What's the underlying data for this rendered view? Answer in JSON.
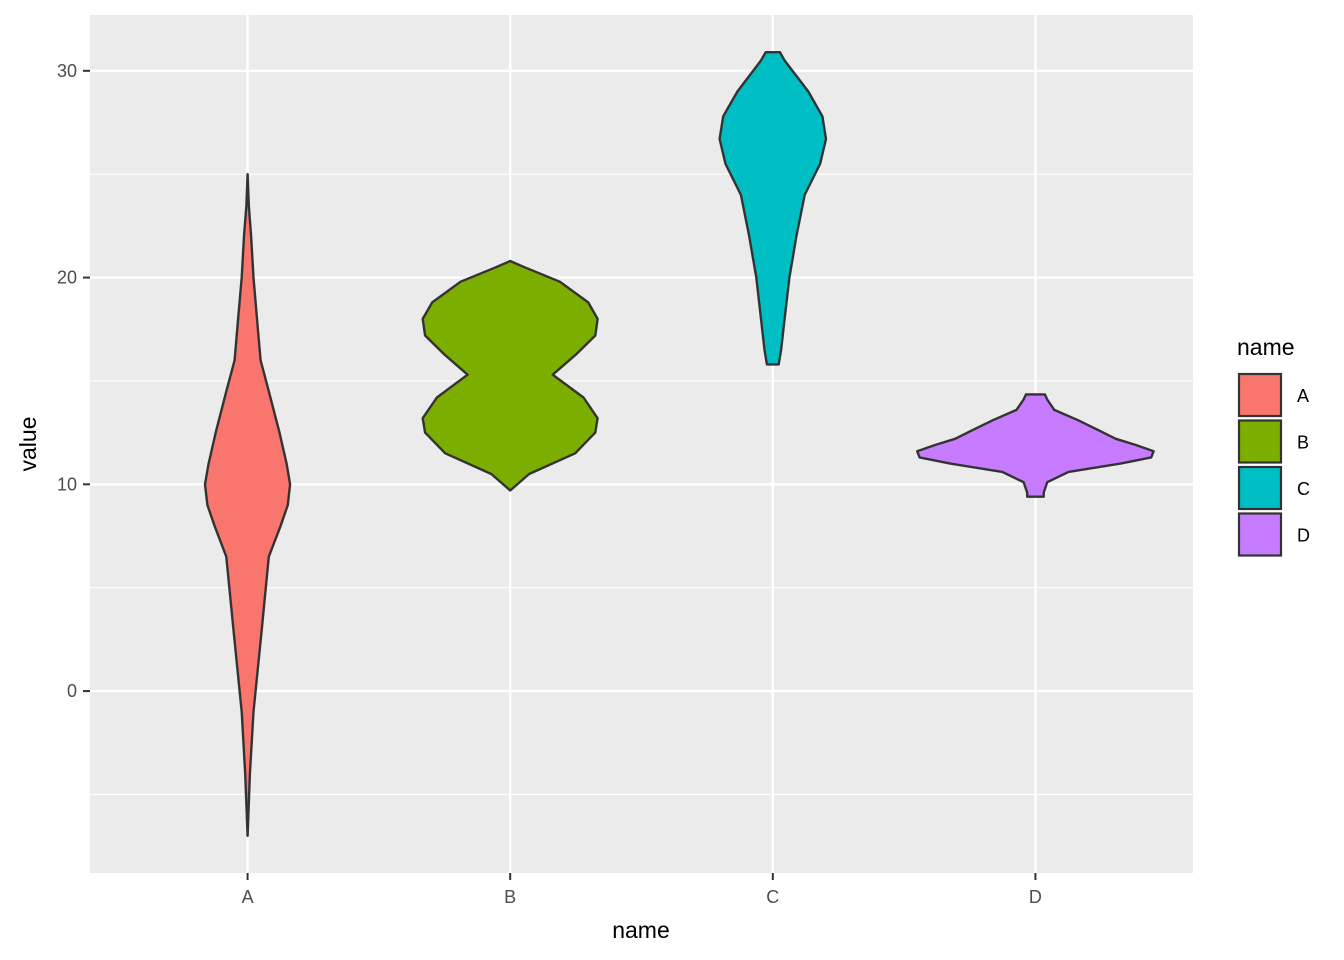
{
  "chart_data": {
    "type": "violin",
    "xlabel": "name",
    "ylabel": "value",
    "categories": [
      "A",
      "B",
      "C",
      "D"
    ],
    "ylim": [
      -8.8,
      32.7
    ],
    "yticks": [
      0,
      10,
      20,
      30
    ],
    "grid": true,
    "legend": {
      "title": "name",
      "placement": "right",
      "entries": [
        "A",
        "B",
        "C",
        "D"
      ]
    },
    "series": [
      {
        "name": "A",
        "color": "#F8766D",
        "profile": [
          [
            -7,
            0.0
          ],
          [
            -4,
            0.02
          ],
          [
            -1,
            0.05
          ],
          [
            3,
            0.12
          ],
          [
            6.5,
            0.18
          ],
          [
            8,
            0.28
          ],
          [
            9,
            0.34
          ],
          [
            10,
            0.36
          ],
          [
            11,
            0.33
          ],
          [
            12.5,
            0.27
          ],
          [
            14.5,
            0.18
          ],
          [
            16,
            0.11
          ],
          [
            18,
            0.08
          ],
          [
            20,
            0.05
          ],
          [
            22,
            0.03
          ],
          [
            23.5,
            0.01
          ],
          [
            25,
            0.0
          ]
        ]
      },
      {
        "name": "B",
        "color": "#7CAE00",
        "profile": [
          [
            9.7,
            0.0
          ],
          [
            10.5,
            0.16
          ],
          [
            11.5,
            0.55
          ],
          [
            12.5,
            0.72
          ],
          [
            13.2,
            0.74
          ],
          [
            14.2,
            0.62
          ],
          [
            15.3,
            0.36
          ],
          [
            16.3,
            0.56
          ],
          [
            17.2,
            0.72
          ],
          [
            18,
            0.74
          ],
          [
            18.8,
            0.66
          ],
          [
            19.8,
            0.42
          ],
          [
            20.5,
            0.12
          ],
          [
            20.8,
            0.0
          ]
        ]
      },
      {
        "name": "C",
        "color": "#00BFC4",
        "profile": [
          [
            15.8,
            0.05
          ],
          [
            16.5,
            0.07
          ],
          [
            18,
            0.1
          ],
          [
            20,
            0.14
          ],
          [
            22,
            0.2
          ],
          [
            24,
            0.27
          ],
          [
            25.5,
            0.4
          ],
          [
            26.7,
            0.45
          ],
          [
            27.8,
            0.42
          ],
          [
            29,
            0.3
          ],
          [
            30.5,
            0.1
          ],
          [
            30.9,
            0.06
          ]
        ]
      },
      {
        "name": "D",
        "color": "#C77CFF",
        "profile": [
          [
            9.4,
            0.07
          ],
          [
            9.6,
            0.07
          ],
          [
            10.1,
            0.1
          ],
          [
            10.6,
            0.28
          ],
          [
            11,
            0.72
          ],
          [
            11.3,
            0.98
          ],
          [
            11.6,
            1.0
          ],
          [
            11.9,
            0.85
          ],
          [
            12.2,
            0.68
          ],
          [
            12.6,
            0.54
          ],
          [
            13.1,
            0.36
          ],
          [
            13.6,
            0.16
          ],
          [
            14.1,
            0.1
          ],
          [
            14.35,
            0.08
          ]
        ]
      }
    ]
  }
}
